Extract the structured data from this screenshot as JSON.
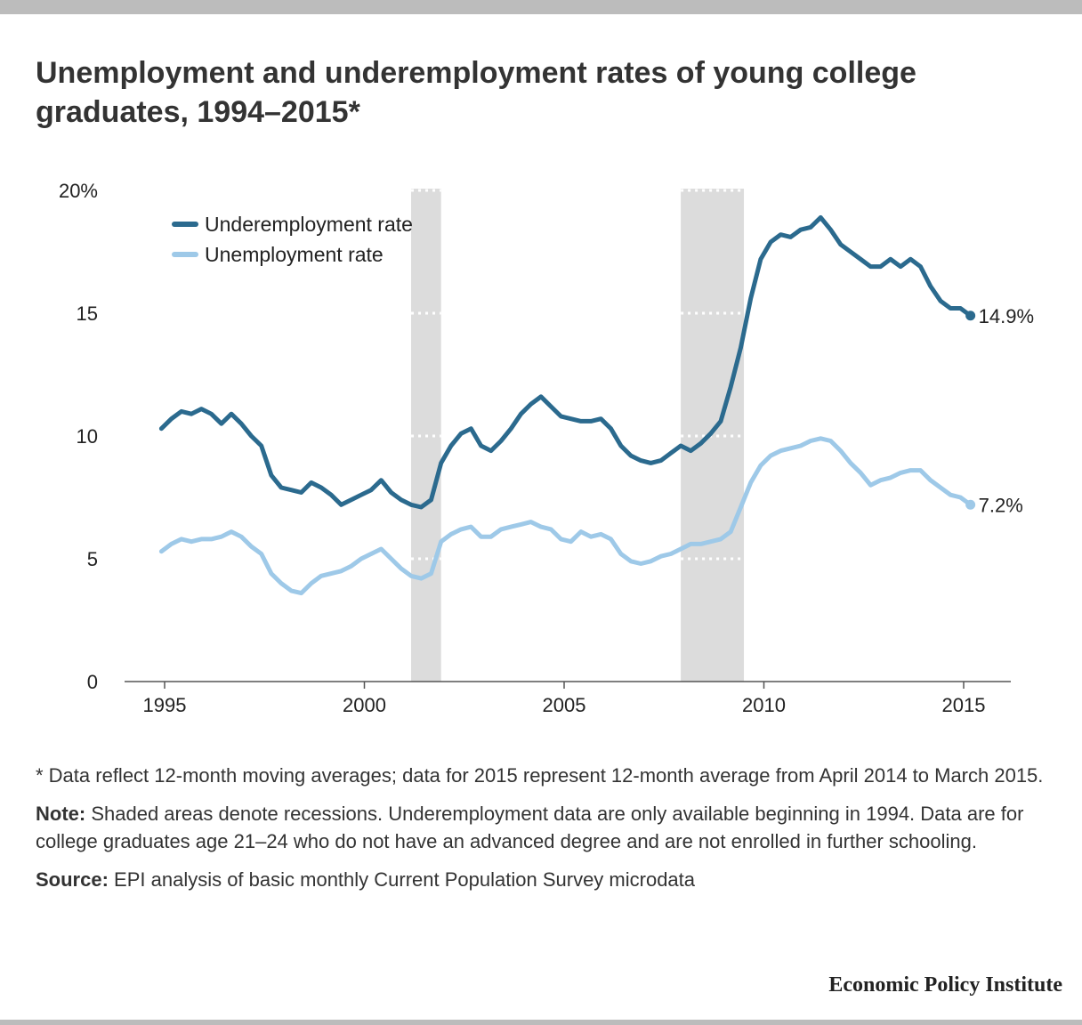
{
  "header": {
    "title": "Unemployment and underemployment rates of young college graduates, 1994–2015*"
  },
  "notes": {
    "asterisk": "* Data reflect 12-month moving averages; data for 2015 represent 12-month average from April 2014 to March 2015.",
    "note_label": "Note:",
    "note_text": " Shaded areas denote recessions. Underemployment data are only available beginning in 1994. Data are for college graduates age 21–24 who do not have an advanced degree and are not enrolled in further schooling.",
    "source_label": "Source:",
    "source_text": " EPI analysis of basic monthly Current Population Survey microdata"
  },
  "footer": {
    "brand": "Economic Policy Institute"
  },
  "chart_data": {
    "type": "line",
    "title": "",
    "xlabel": "",
    "ylabel": "",
    "xlim": [
      1994.8,
      2016.2
    ],
    "ylim": [
      0,
      20
    ],
    "x_ticks": [
      1995,
      2000,
      2005,
      2010,
      2015
    ],
    "x_tick_labels": [
      "1995",
      "2000",
      "2005",
      "2010",
      "2015"
    ],
    "y_ticks": [
      0,
      5,
      10,
      15,
      20
    ],
    "y_tick_labels": [
      "0",
      "5",
      "10",
      "15",
      "20%"
    ],
    "legend_position": "top-left",
    "recessions": [
      [
        2001.17,
        2001.92
      ],
      [
        2007.92,
        2009.5
      ]
    ],
    "series": [
      {
        "name": "Underemployment rate",
        "color": "#2b6a8e",
        "end_label": "14.9%",
        "x": [
          1994.92,
          1995.17,
          1995.42,
          1995.67,
          1995.92,
          1996.17,
          1996.42,
          1996.67,
          1996.92,
          1997.17,
          1997.42,
          1997.67,
          1997.92,
          1998.17,
          1998.42,
          1998.67,
          1998.92,
          1999.17,
          1999.42,
          1999.67,
          1999.92,
          2000.17,
          2000.42,
          2000.67,
          2000.92,
          2001.17,
          2001.42,
          2001.67,
          2001.92,
          2002.17,
          2002.42,
          2002.67,
          2002.92,
          2003.17,
          2003.42,
          2003.67,
          2003.92,
          2004.17,
          2004.42,
          2004.67,
          2004.92,
          2005.17,
          2005.42,
          2005.67,
          2005.92,
          2006.17,
          2006.42,
          2006.67,
          2006.92,
          2007.17,
          2007.42,
          2007.67,
          2007.92,
          2008.17,
          2008.42,
          2008.67,
          2008.92,
          2009.17,
          2009.42,
          2009.67,
          2009.92,
          2010.17,
          2010.42,
          2010.67,
          2010.92,
          2011.17,
          2011.42,
          2011.67,
          2011.92,
          2012.17,
          2012.42,
          2012.67,
          2012.92,
          2013.17,
          2013.42,
          2013.67,
          2013.92,
          2014.17,
          2014.42,
          2014.67,
          2014.92,
          2015.17
        ],
        "y": [
          10.3,
          10.7,
          11.0,
          10.9,
          11.1,
          10.9,
          10.5,
          10.9,
          10.5,
          10.0,
          9.6,
          8.4,
          7.9,
          7.8,
          7.7,
          8.1,
          7.9,
          7.6,
          7.2,
          7.4,
          7.6,
          7.8,
          8.2,
          7.7,
          7.4,
          7.2,
          7.1,
          7.4,
          8.9,
          9.6,
          10.1,
          10.3,
          9.6,
          9.4,
          9.8,
          10.3,
          10.9,
          11.3,
          11.6,
          11.2,
          10.8,
          10.7,
          10.6,
          10.6,
          10.7,
          10.3,
          9.6,
          9.2,
          9.0,
          8.9,
          9.0,
          9.3,
          9.6,
          9.4,
          9.7,
          10.1,
          10.6,
          12.0,
          13.6,
          15.6,
          17.2,
          17.9,
          18.2,
          18.1,
          18.4,
          18.5,
          18.9,
          18.4,
          17.8,
          17.5,
          17.2,
          16.9,
          16.9,
          17.2,
          16.9,
          17.2,
          16.9,
          16.1,
          15.5,
          15.2,
          15.2,
          14.9
        ]
      },
      {
        "name": "Unemployment rate",
        "color": "#9ec9e8",
        "end_label": "7.2%",
        "x": [
          1994.92,
          1995.17,
          1995.42,
          1995.67,
          1995.92,
          1996.17,
          1996.42,
          1996.67,
          1996.92,
          1997.17,
          1997.42,
          1997.67,
          1997.92,
          1998.17,
          1998.42,
          1998.67,
          1998.92,
          1999.17,
          1999.42,
          1999.67,
          1999.92,
          2000.17,
          2000.42,
          2000.67,
          2000.92,
          2001.17,
          2001.42,
          2001.67,
          2001.92,
          2002.17,
          2002.42,
          2002.67,
          2002.92,
          2003.17,
          2003.42,
          2003.67,
          2003.92,
          2004.17,
          2004.42,
          2004.67,
          2004.92,
          2005.17,
          2005.42,
          2005.67,
          2005.92,
          2006.17,
          2006.42,
          2006.67,
          2006.92,
          2007.17,
          2007.42,
          2007.67,
          2007.92,
          2008.17,
          2008.42,
          2008.67,
          2008.92,
          2009.17,
          2009.42,
          2009.67,
          2009.92,
          2010.17,
          2010.42,
          2010.67,
          2010.92,
          2011.17,
          2011.42,
          2011.67,
          2011.92,
          2012.17,
          2012.42,
          2012.67,
          2012.92,
          2013.17,
          2013.42,
          2013.67,
          2013.92,
          2014.17,
          2014.42,
          2014.67,
          2014.92,
          2015.17
        ],
        "y": [
          5.3,
          5.6,
          5.8,
          5.7,
          5.8,
          5.8,
          5.9,
          6.1,
          5.9,
          5.5,
          5.2,
          4.4,
          4.0,
          3.7,
          3.6,
          4.0,
          4.3,
          4.4,
          4.5,
          4.7,
          5.0,
          5.2,
          5.4,
          5.0,
          4.6,
          4.3,
          4.2,
          4.4,
          5.7,
          6.0,
          6.2,
          6.3,
          5.9,
          5.9,
          6.2,
          6.3,
          6.4,
          6.5,
          6.3,
          6.2,
          5.8,
          5.7,
          6.1,
          5.9,
          6.0,
          5.8,
          5.2,
          4.9,
          4.8,
          4.9,
          5.1,
          5.2,
          5.4,
          5.6,
          5.6,
          5.7,
          5.8,
          6.1,
          7.1,
          8.1,
          8.8,
          9.2,
          9.4,
          9.5,
          9.6,
          9.8,
          9.9,
          9.8,
          9.4,
          8.9,
          8.5,
          8.0,
          8.2,
          8.3,
          8.5,
          8.6,
          8.6,
          8.2,
          7.9,
          7.6,
          7.5,
          7.2
        ]
      }
    ]
  }
}
